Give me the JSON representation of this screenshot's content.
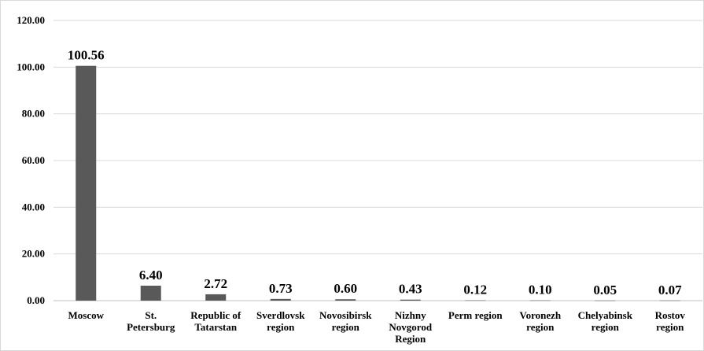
{
  "chart_data": {
    "type": "bar",
    "categories": [
      [
        "Moscow"
      ],
      [
        "St.",
        "Petersburg"
      ],
      [
        "Republic of",
        "Tatarstan"
      ],
      [
        "Sverdlovsk",
        "region"
      ],
      [
        "Novosibirsk",
        "region"
      ],
      [
        "Nizhny",
        "Novgorod",
        "Region"
      ],
      [
        "Perm region"
      ],
      [
        "Voronezh",
        "region"
      ],
      [
        "Chelyabinsk",
        "region"
      ],
      [
        "Rostov",
        "region"
      ]
    ],
    "values": [
      100.56,
      6.4,
      2.72,
      0.73,
      0.6,
      0.43,
      0.12,
      0.1,
      0.05,
      0.07
    ],
    "data_labels": [
      "100.56",
      "6.40",
      "2.72",
      "0.73",
      "0.60",
      "0.43",
      "0.12",
      "0.10",
      "0.05",
      "0.07"
    ],
    "y_ticks": [
      "0.00",
      "20.00",
      "40.00",
      "60.00",
      "80.00",
      "100.00",
      "120.00"
    ],
    "ylim": [
      0,
      120
    ],
    "grid": true,
    "legend": "none",
    "colors": {
      "bar": "#595959",
      "grid": "#d9d9d9",
      "axis": "#bfbfbf"
    }
  }
}
